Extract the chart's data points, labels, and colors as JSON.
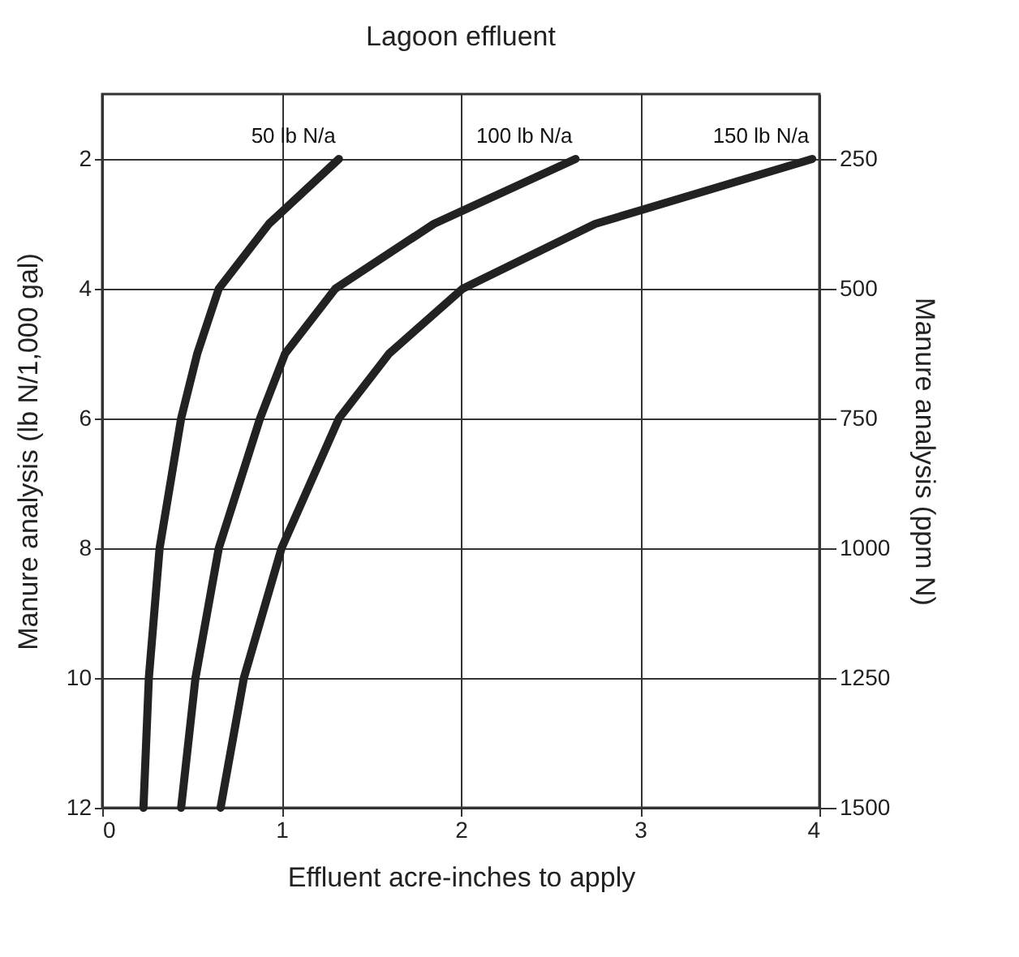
{
  "chart_data": {
    "type": "line",
    "title": "Lagoon effluent",
    "xlabel": "Effluent acre-inches to apply",
    "ylabel": "Manure analysis (lb N/1,000 gal)",
    "y2label": "Manure analysis (ppm N)",
    "series": [
      {
        "name": "50 lb N/a",
        "color": "#222222",
        "x": [
          1.32,
          0.93,
          0.65,
          0.53,
          0.44,
          0.32,
          0.26,
          0.23
        ],
        "values": [
          2,
          3,
          4,
          5,
          6,
          8,
          10,
          12
        ]
      },
      {
        "name": "100 lb N/a",
        "color": "#222222",
        "x": [
          2.64,
          1.85,
          1.3,
          1.02,
          0.88,
          0.65,
          0.52,
          0.44
        ],
        "values": [
          2,
          3,
          4,
          5,
          6,
          8,
          10,
          12
        ]
      },
      {
        "name": "150 lb N/a",
        "color": "#222222",
        "x": [
          3.96,
          2.75,
          2.01,
          1.6,
          1.32,
          1.0,
          0.79,
          0.66
        ],
        "values": [
          2,
          3,
          4,
          5,
          6,
          8,
          10,
          12
        ]
      }
    ],
    "xlim": [
      0,
      4
    ],
    "xticks": [
      0,
      1,
      2,
      3,
      4
    ],
    "ylim": [
      12,
      1
    ],
    "yticks": [
      2,
      4,
      6,
      8,
      10,
      12
    ],
    "y2lim": [
      1500,
      125
    ],
    "y2ticks": [
      250,
      500,
      750,
      1000,
      1250,
      1500
    ],
    "grid": true,
    "legend": false,
    "marker": "none",
    "line_style": "solid"
  }
}
